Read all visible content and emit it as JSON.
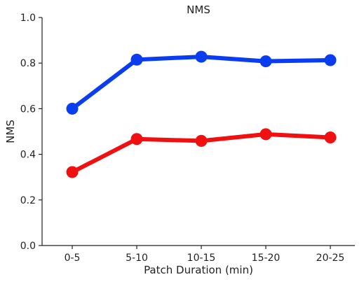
{
  "chart_data": {
    "type": "line",
    "title": "NMS",
    "xlabel": "Patch Duration (min)",
    "ylabel": "NMS",
    "categories": [
      "0-5",
      "5-10",
      "10-15",
      "15-20",
      "20-25"
    ],
    "ylim": [
      0.0,
      1.0
    ],
    "yticks": [
      "0.0",
      "0.2",
      "0.4",
      "0.6",
      "0.8",
      "1.0"
    ],
    "grid": false,
    "legend": "none",
    "series": [
      {
        "color": "#0b3df0",
        "values": [
          0.6,
          0.815,
          0.828,
          0.808,
          0.813
        ]
      },
      {
        "color": "#f01010",
        "values": [
          0.322,
          0.467,
          0.459,
          0.488,
          0.474
        ]
      }
    ],
    "colors": {
      "axis": "#222222",
      "text": "#222222"
    }
  }
}
